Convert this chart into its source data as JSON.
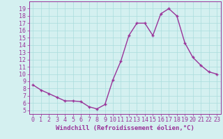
{
  "x": [
    0,
    1,
    2,
    3,
    4,
    5,
    6,
    7,
    8,
    9,
    10,
    11,
    12,
    13,
    14,
    15,
    16,
    17,
    18,
    19,
    20,
    21,
    22,
    23
  ],
  "y": [
    8.5,
    7.8,
    7.3,
    6.8,
    6.3,
    6.3,
    6.2,
    5.5,
    5.2,
    5.8,
    9.2,
    11.8,
    15.3,
    17.0,
    17.0,
    15.3,
    18.3,
    19.0,
    18.0,
    14.3,
    12.3,
    11.2,
    10.3,
    10.0
  ],
  "line_color": "#993399",
  "marker": "+",
  "marker_size": 3,
  "bg_color": "#d4f0f0",
  "grid_color": "#aadddd",
  "xlabel": "Windchill (Refroidissement éolien,°C)",
  "ylim": [
    4.5,
    20
  ],
  "xlim": [
    -0.5,
    23.5
  ],
  "yticks": [
    5,
    6,
    7,
    8,
    9,
    10,
    11,
    12,
    13,
    14,
    15,
    16,
    17,
    18,
    19
  ],
  "xticks": [
    0,
    1,
    2,
    3,
    4,
    5,
    6,
    7,
    8,
    9,
    10,
    11,
    12,
    13,
    14,
    15,
    16,
    17,
    18,
    19,
    20,
    21,
    22,
    23
  ],
  "tick_color": "#993399",
  "label_color": "#993399",
  "xlabel_fontsize": 6.5,
  "tick_fontsize": 6,
  "line_width": 1.0
}
